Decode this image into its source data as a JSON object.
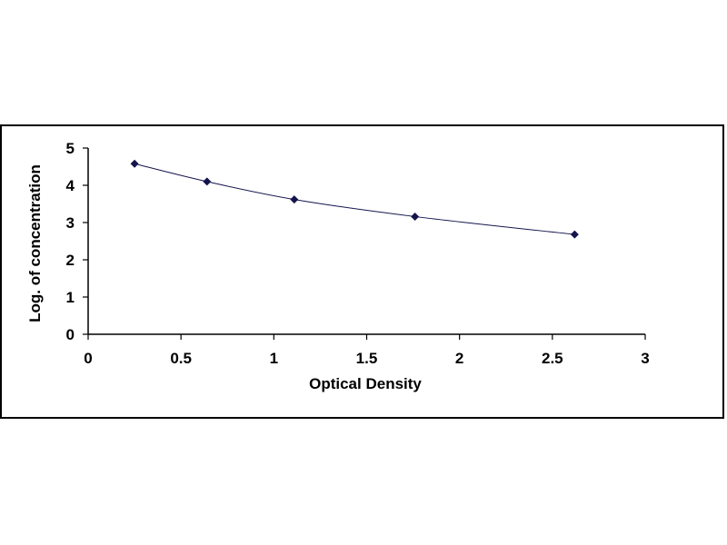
{
  "chart_data": {
    "type": "scatter",
    "title": "",
    "xlabel": "Optical Density",
    "ylabel": "Log. of concentration",
    "xlim": [
      0,
      3
    ],
    "ylim": [
      0,
      5
    ],
    "xticks": [
      "0",
      "0.5",
      "1",
      "1.5",
      "2",
      "2.5",
      "3"
    ],
    "yticks": [
      "0",
      "1",
      "2",
      "3",
      "4",
      "5"
    ],
    "grid": false,
    "legend": "none",
    "series": [
      {
        "x": [
          0.25,
          0.64,
          1.11,
          1.76,
          2.62
        ],
        "y": [
          4.58,
          4.1,
          3.62,
          3.16,
          2.68
        ]
      }
    ],
    "fit_line": "smooth curve",
    "colors": {
      "marker": "#14144d",
      "line": "#14144d",
      "axis": "#000000"
    }
  }
}
